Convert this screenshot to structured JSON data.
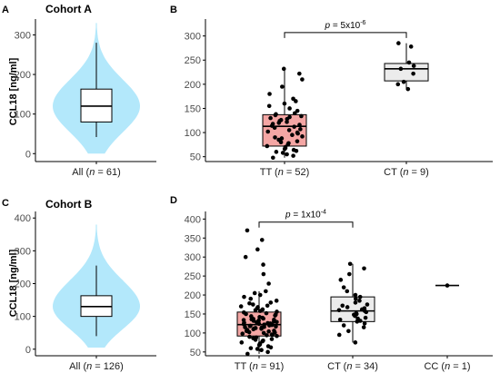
{
  "ylabel": "CCL18 [ng/ml]",
  "colors": {
    "violin": "#b3e8fb",
    "tt_box": "#f4a6a4",
    "ct_box": "#ececec"
  },
  "chart_data": [
    {
      "type": "violin",
      "panel": "A",
      "title": "Cohort A",
      "ylabel": "CCL18 [ng/ml]",
      "ylim": [
        -20,
        340
      ],
      "yticks": [
        0,
        100,
        200,
        300
      ],
      "categories": [
        "All (n = 61)"
      ],
      "box": {
        "q1": 80,
        "median": 120,
        "q3": 163,
        "whisker_low": 42,
        "whisker_high": 280
      },
      "violin_range": [
        0,
        330
      ]
    },
    {
      "type": "boxplot",
      "panel": "B",
      "ylim": [
        40,
        335
      ],
      "yticks": [
        50,
        100,
        150,
        200,
        250,
        300
      ],
      "categories": [
        "TT (n = 52)",
        "CT (n = 9)"
      ],
      "annotation": "p = 5x10-6",
      "boxes": [
        {
          "q1": 72,
          "median": 113,
          "q3": 137,
          "whisker_low": 48,
          "whisker_high": 232
        },
        {
          "q1": 207,
          "median": 232,
          "q3": 243,
          "whisker_low": 190,
          "whisker_high": 285
        }
      ],
      "points": [
        [
          48,
          52,
          55,
          58,
          60,
          62,
          64,
          66,
          68,
          70,
          72,
          75,
          78,
          80,
          82,
          85,
          88,
          90,
          92,
          95,
          98,
          100,
          102,
          105,
          107,
          110,
          112,
          114,
          116,
          118,
          120,
          122,
          124,
          126,
          128,
          130,
          132,
          134,
          136,
          138,
          140,
          145,
          150,
          155,
          160,
          165,
          170,
          180,
          195,
          210,
          222,
          232
        ],
        [
          190,
          200,
          205,
          222,
          232,
          238,
          245,
          278,
          285
        ]
      ]
    },
    {
      "type": "violin",
      "panel": "C",
      "title": "Cohort B",
      "ylabel": "CCL18 [ng/ml]",
      "ylim": [
        -20,
        420
      ],
      "yticks": [
        0,
        100,
        200,
        300,
        400
      ],
      "categories": [
        "All (n = 126)"
      ],
      "box": {
        "q1": 100,
        "median": 130,
        "q3": 163,
        "whisker_low": 40,
        "whisker_high": 255
      },
      "violin_range": [
        5,
        380
      ]
    },
    {
      "type": "boxplot",
      "panel": "D",
      "ylim": [
        40,
        420
      ],
      "yticks": [
        50,
        100,
        150,
        200,
        250,
        300,
        350,
        400
      ],
      "categories": [
        "TT (n = 91)",
        "CT (n = 34)",
        "CC (n = 1)"
      ],
      "annotation": "p = 1x10-4",
      "boxes": [
        {
          "q1": 92,
          "median": 122,
          "q3": 155,
          "whisker_low": 45,
          "whisker_high": 210
        },
        {
          "q1": 130,
          "median": 158,
          "q3": 195,
          "whisker_low": 75,
          "whisker_high": 282
        },
        {
          "q1": 225,
          "median": 225,
          "q3": 225,
          "whisker_low": 225,
          "whisker_high": 225
        }
      ],
      "points": [
        [
          45,
          50,
          55,
          58,
          60,
          62,
          65,
          68,
          70,
          72,
          75,
          78,
          80,
          82,
          84,
          86,
          88,
          90,
          92,
          94,
          95,
          96,
          98,
          100,
          101,
          102,
          104,
          105,
          106,
          108,
          110,
          111,
          112,
          113,
          114,
          115,
          116,
          117,
          118,
          119,
          120,
          121,
          122,
          123,
          124,
          125,
          126,
          127,
          128,
          129,
          130,
          131,
          132,
          133,
          134,
          135,
          136,
          137,
          138,
          140,
          142,
          144,
          146,
          148,
          150,
          152,
          154,
          156,
          158,
          160,
          162,
          165,
          168,
          170,
          172,
          175,
          178,
          180,
          185,
          190,
          195,
          200,
          205,
          210,
          230,
          255,
          280,
          300,
          320,
          345,
          370
        ],
        [
          75,
          95,
          105,
          115,
          120,
          125,
          130,
          132,
          135,
          138,
          140,
          145,
          148,
          150,
          152,
          155,
          158,
          160,
          162,
          165,
          168,
          172,
          175,
          180,
          185,
          190,
          195,
          200,
          210,
          220,
          240,
          255,
          270,
          282
        ],
        [
          225
        ]
      ]
    }
  ]
}
